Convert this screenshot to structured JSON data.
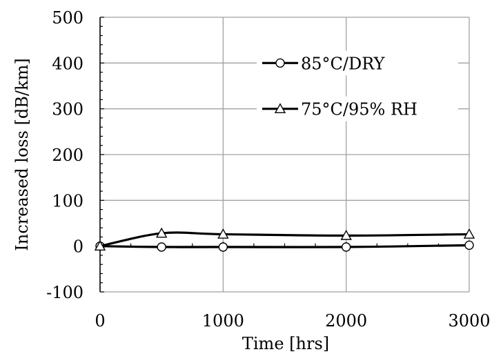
{
  "chart_data": {
    "type": "line",
    "title": "",
    "xlabel": "Time [hrs]",
    "ylabel": "Increased loss [dB/km]",
    "xlim": [
      0,
      3000
    ],
    "ylim": [
      -100,
      500
    ],
    "x_ticks": [
      0,
      1000,
      2000,
      3000
    ],
    "x_tick_labels": [
      "0",
      "1000",
      "2000",
      "3000"
    ],
    "y_ticks": [
      -100,
      0,
      100,
      200,
      300,
      400,
      500
    ],
    "y_tick_labels": [
      "-100",
      "0",
      "100",
      "200",
      "300",
      "400",
      "500"
    ],
    "grid": true,
    "legend_position": "top-right",
    "series": [
      {
        "name": "85°C/DRY",
        "marker": "circle",
        "x": [
          0,
          500,
          1000,
          2000,
          3000
        ],
        "y": [
          0,
          -2,
          -2,
          -2,
          2
        ]
      },
      {
        "name": "75°C/95% RH",
        "marker": "triangle",
        "x": [
          0,
          500,
          1000,
          2000,
          3000
        ],
        "y": [
          0,
          28,
          26,
          23,
          26
        ]
      }
    ],
    "colors": {
      "line": "#000000",
      "grid": "#a0a0a0",
      "marker_fill": "#ffffff"
    }
  }
}
